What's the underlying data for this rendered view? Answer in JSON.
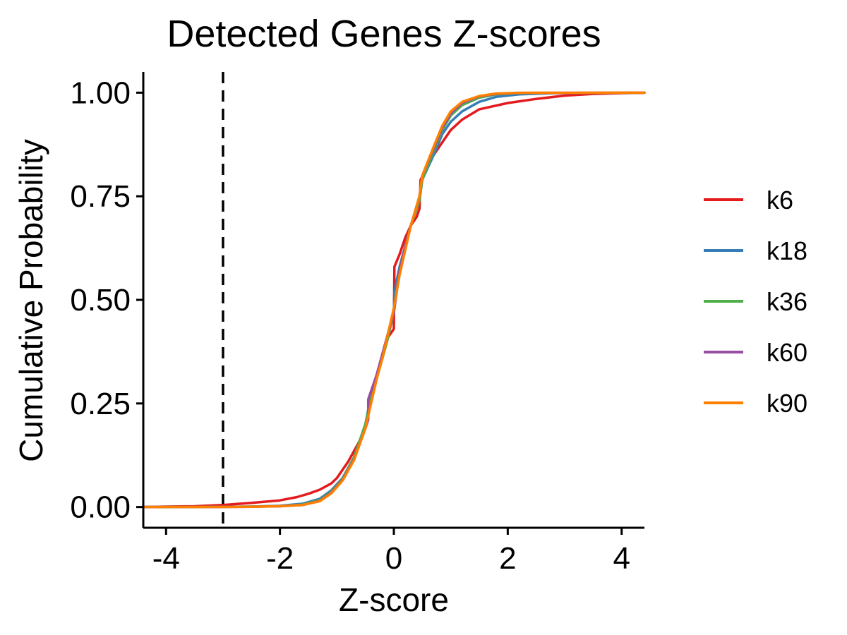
{
  "chart_data": {
    "type": "line",
    "title": "Detected Genes Z-scores",
    "xlabel": "Z-score",
    "ylabel": "Cumulative Probability",
    "xlim": [
      -4.4,
      4.4
    ],
    "ylim": [
      -0.05,
      1.05
    ],
    "x_ticks": [
      -4,
      -2,
      0,
      2,
      4
    ],
    "x_tick_labels": [
      "-4",
      "-2",
      "0",
      "2",
      "4"
    ],
    "y_ticks": [
      0,
      0.25,
      0.5,
      0.75,
      1.0
    ],
    "y_tick_labels": [
      "0.00",
      "0.25",
      "0.50",
      "0.75",
      "1.00"
    ],
    "grid": false,
    "legend_position": "right",
    "reference_line": {
      "orientation": "vertical",
      "x": -3,
      "style": "dashed",
      "color": "#000000"
    },
    "series": [
      {
        "name": "k6",
        "color": "#E41A1C",
        "points": [
          [
            -4.4,
            0
          ],
          [
            -4,
            0.001
          ],
          [
            -3.5,
            0.002
          ],
          [
            -3,
            0.005
          ],
          [
            -2.5,
            0.01
          ],
          [
            -2,
            0.016
          ],
          [
            -1.7,
            0.024
          ],
          [
            -1.5,
            0.032
          ],
          [
            -1.3,
            0.042
          ],
          [
            -1.1,
            0.057
          ],
          [
            -1,
            0.07
          ],
          [
            -0.9,
            0.09
          ],
          [
            -0.8,
            0.11
          ],
          [
            -0.7,
            0.135
          ],
          [
            -0.6,
            0.16
          ],
          [
            -0.5,
            0.19
          ],
          [
            -0.45,
            0.22
          ],
          [
            -0.4,
            0.27
          ],
          [
            -0.3,
            0.32
          ],
          [
            -0.2,
            0.36
          ],
          [
            -0.1,
            0.41
          ],
          [
            0,
            0.43
          ],
          [
            0.01,
            0.58
          ],
          [
            0.1,
            0.61
          ],
          [
            0.2,
            0.65
          ],
          [
            0.3,
            0.68
          ],
          [
            0.4,
            0.7
          ],
          [
            0.45,
            0.72
          ],
          [
            0.47,
            0.79
          ],
          [
            0.55,
            0.81
          ],
          [
            0.7,
            0.85
          ],
          [
            0.85,
            0.88
          ],
          [
            1,
            0.91
          ],
          [
            1.2,
            0.935
          ],
          [
            1.5,
            0.96
          ],
          [
            2,
            0.975
          ],
          [
            2.5,
            0.985
          ],
          [
            3,
            0.993
          ],
          [
            3.5,
            0.997
          ],
          [
            4,
            0.999
          ],
          [
            4.4,
            1
          ]
        ]
      },
      {
        "name": "k18",
        "color": "#377EB8",
        "points": [
          [
            -4.4,
            0
          ],
          [
            -3,
            0.0005
          ],
          [
            -2.5,
            0.001
          ],
          [
            -2,
            0.003
          ],
          [
            -1.6,
            0.008
          ],
          [
            -1.3,
            0.02
          ],
          [
            -1.1,
            0.04
          ],
          [
            -0.9,
            0.07
          ],
          [
            -0.7,
            0.12
          ],
          [
            -0.5,
            0.2
          ],
          [
            -0.4,
            0.27
          ],
          [
            -0.3,
            0.32
          ],
          [
            -0.2,
            0.37
          ],
          [
            -0.1,
            0.42
          ],
          [
            0,
            0.47
          ],
          [
            0.01,
            0.52
          ],
          [
            0.1,
            0.58
          ],
          [
            0.2,
            0.63
          ],
          [
            0.3,
            0.68
          ],
          [
            0.45,
            0.74
          ],
          [
            0.5,
            0.79
          ],
          [
            0.7,
            0.85
          ],
          [
            0.85,
            0.9
          ],
          [
            1,
            0.93
          ],
          [
            1.2,
            0.955
          ],
          [
            1.5,
            0.978
          ],
          [
            1.8,
            0.99
          ],
          [
            2.2,
            0.996
          ],
          [
            2.8,
            0.999
          ],
          [
            4.4,
            1
          ]
        ]
      },
      {
        "name": "k36",
        "color": "#4DAF4A",
        "points": [
          [
            -4.4,
            0
          ],
          [
            -3,
            0.0004
          ],
          [
            -2.5,
            0.001
          ],
          [
            -2,
            0.002
          ],
          [
            -1.6,
            0.006
          ],
          [
            -1.3,
            0.017
          ],
          [
            -1.1,
            0.037
          ],
          [
            -0.9,
            0.068
          ],
          [
            -0.7,
            0.12
          ],
          [
            -0.5,
            0.2
          ],
          [
            -0.4,
            0.26
          ],
          [
            -0.3,
            0.31
          ],
          [
            -0.2,
            0.36
          ],
          [
            -0.1,
            0.41
          ],
          [
            0,
            0.47
          ],
          [
            0.1,
            0.57
          ],
          [
            0.2,
            0.63
          ],
          [
            0.3,
            0.68
          ],
          [
            0.45,
            0.74
          ],
          [
            0.5,
            0.79
          ],
          [
            0.7,
            0.86
          ],
          [
            0.85,
            0.91
          ],
          [
            1,
            0.945
          ],
          [
            1.2,
            0.97
          ],
          [
            1.5,
            0.988
          ],
          [
            1.8,
            0.996
          ],
          [
            2.2,
            0.999
          ],
          [
            4.4,
            1
          ]
        ]
      },
      {
        "name": "k60",
        "color": "#984EA3",
        "points": [
          [
            -4.4,
            0
          ],
          [
            -3,
            0.0003
          ],
          [
            -2.5,
            0.0008
          ],
          [
            -2,
            0.002
          ],
          [
            -1.6,
            0.005
          ],
          [
            -1.3,
            0.015
          ],
          [
            -1.1,
            0.035
          ],
          [
            -0.9,
            0.066
          ],
          [
            -0.7,
            0.115
          ],
          [
            -0.55,
            0.17
          ],
          [
            -0.45,
            0.21
          ],
          [
            -0.45,
            0.26
          ],
          [
            -0.3,
            0.32
          ],
          [
            -0.2,
            0.37
          ],
          [
            -0.1,
            0.42
          ],
          [
            0,
            0.47
          ],
          [
            0.1,
            0.57
          ],
          [
            0.2,
            0.63
          ],
          [
            0.3,
            0.68
          ],
          [
            0.45,
            0.75
          ],
          [
            0.5,
            0.8
          ],
          [
            0.7,
            0.865
          ],
          [
            0.85,
            0.915
          ],
          [
            1,
            0.95
          ],
          [
            1.2,
            0.975
          ],
          [
            1.5,
            0.991
          ],
          [
            1.8,
            0.997
          ],
          [
            2.2,
            0.9995
          ],
          [
            4.4,
            1
          ]
        ]
      },
      {
        "name": "k90",
        "color": "#FF7F00",
        "points": [
          [
            -4.4,
            0
          ],
          [
            -3,
            0.0003
          ],
          [
            -2.5,
            0.0007
          ],
          [
            -2,
            0.002
          ],
          [
            -1.6,
            0.005
          ],
          [
            -1.3,
            0.014
          ],
          [
            -1.1,
            0.033
          ],
          [
            -0.9,
            0.064
          ],
          [
            -0.7,
            0.113
          ],
          [
            -0.5,
            0.19
          ],
          [
            -0.4,
            0.25
          ],
          [
            -0.3,
            0.31
          ],
          [
            -0.2,
            0.36
          ],
          [
            -0.1,
            0.42
          ],
          [
            0,
            0.48
          ],
          [
            0.1,
            0.56
          ],
          [
            0.2,
            0.62
          ],
          [
            0.3,
            0.68
          ],
          [
            0.45,
            0.75
          ],
          [
            0.5,
            0.8
          ],
          [
            0.7,
            0.87
          ],
          [
            0.85,
            0.92
          ],
          [
            1,
            0.955
          ],
          [
            1.2,
            0.978
          ],
          [
            1.5,
            0.992
          ],
          [
            1.8,
            0.998
          ],
          [
            2.2,
            0.9998
          ],
          [
            4.4,
            1
          ]
        ]
      }
    ]
  }
}
